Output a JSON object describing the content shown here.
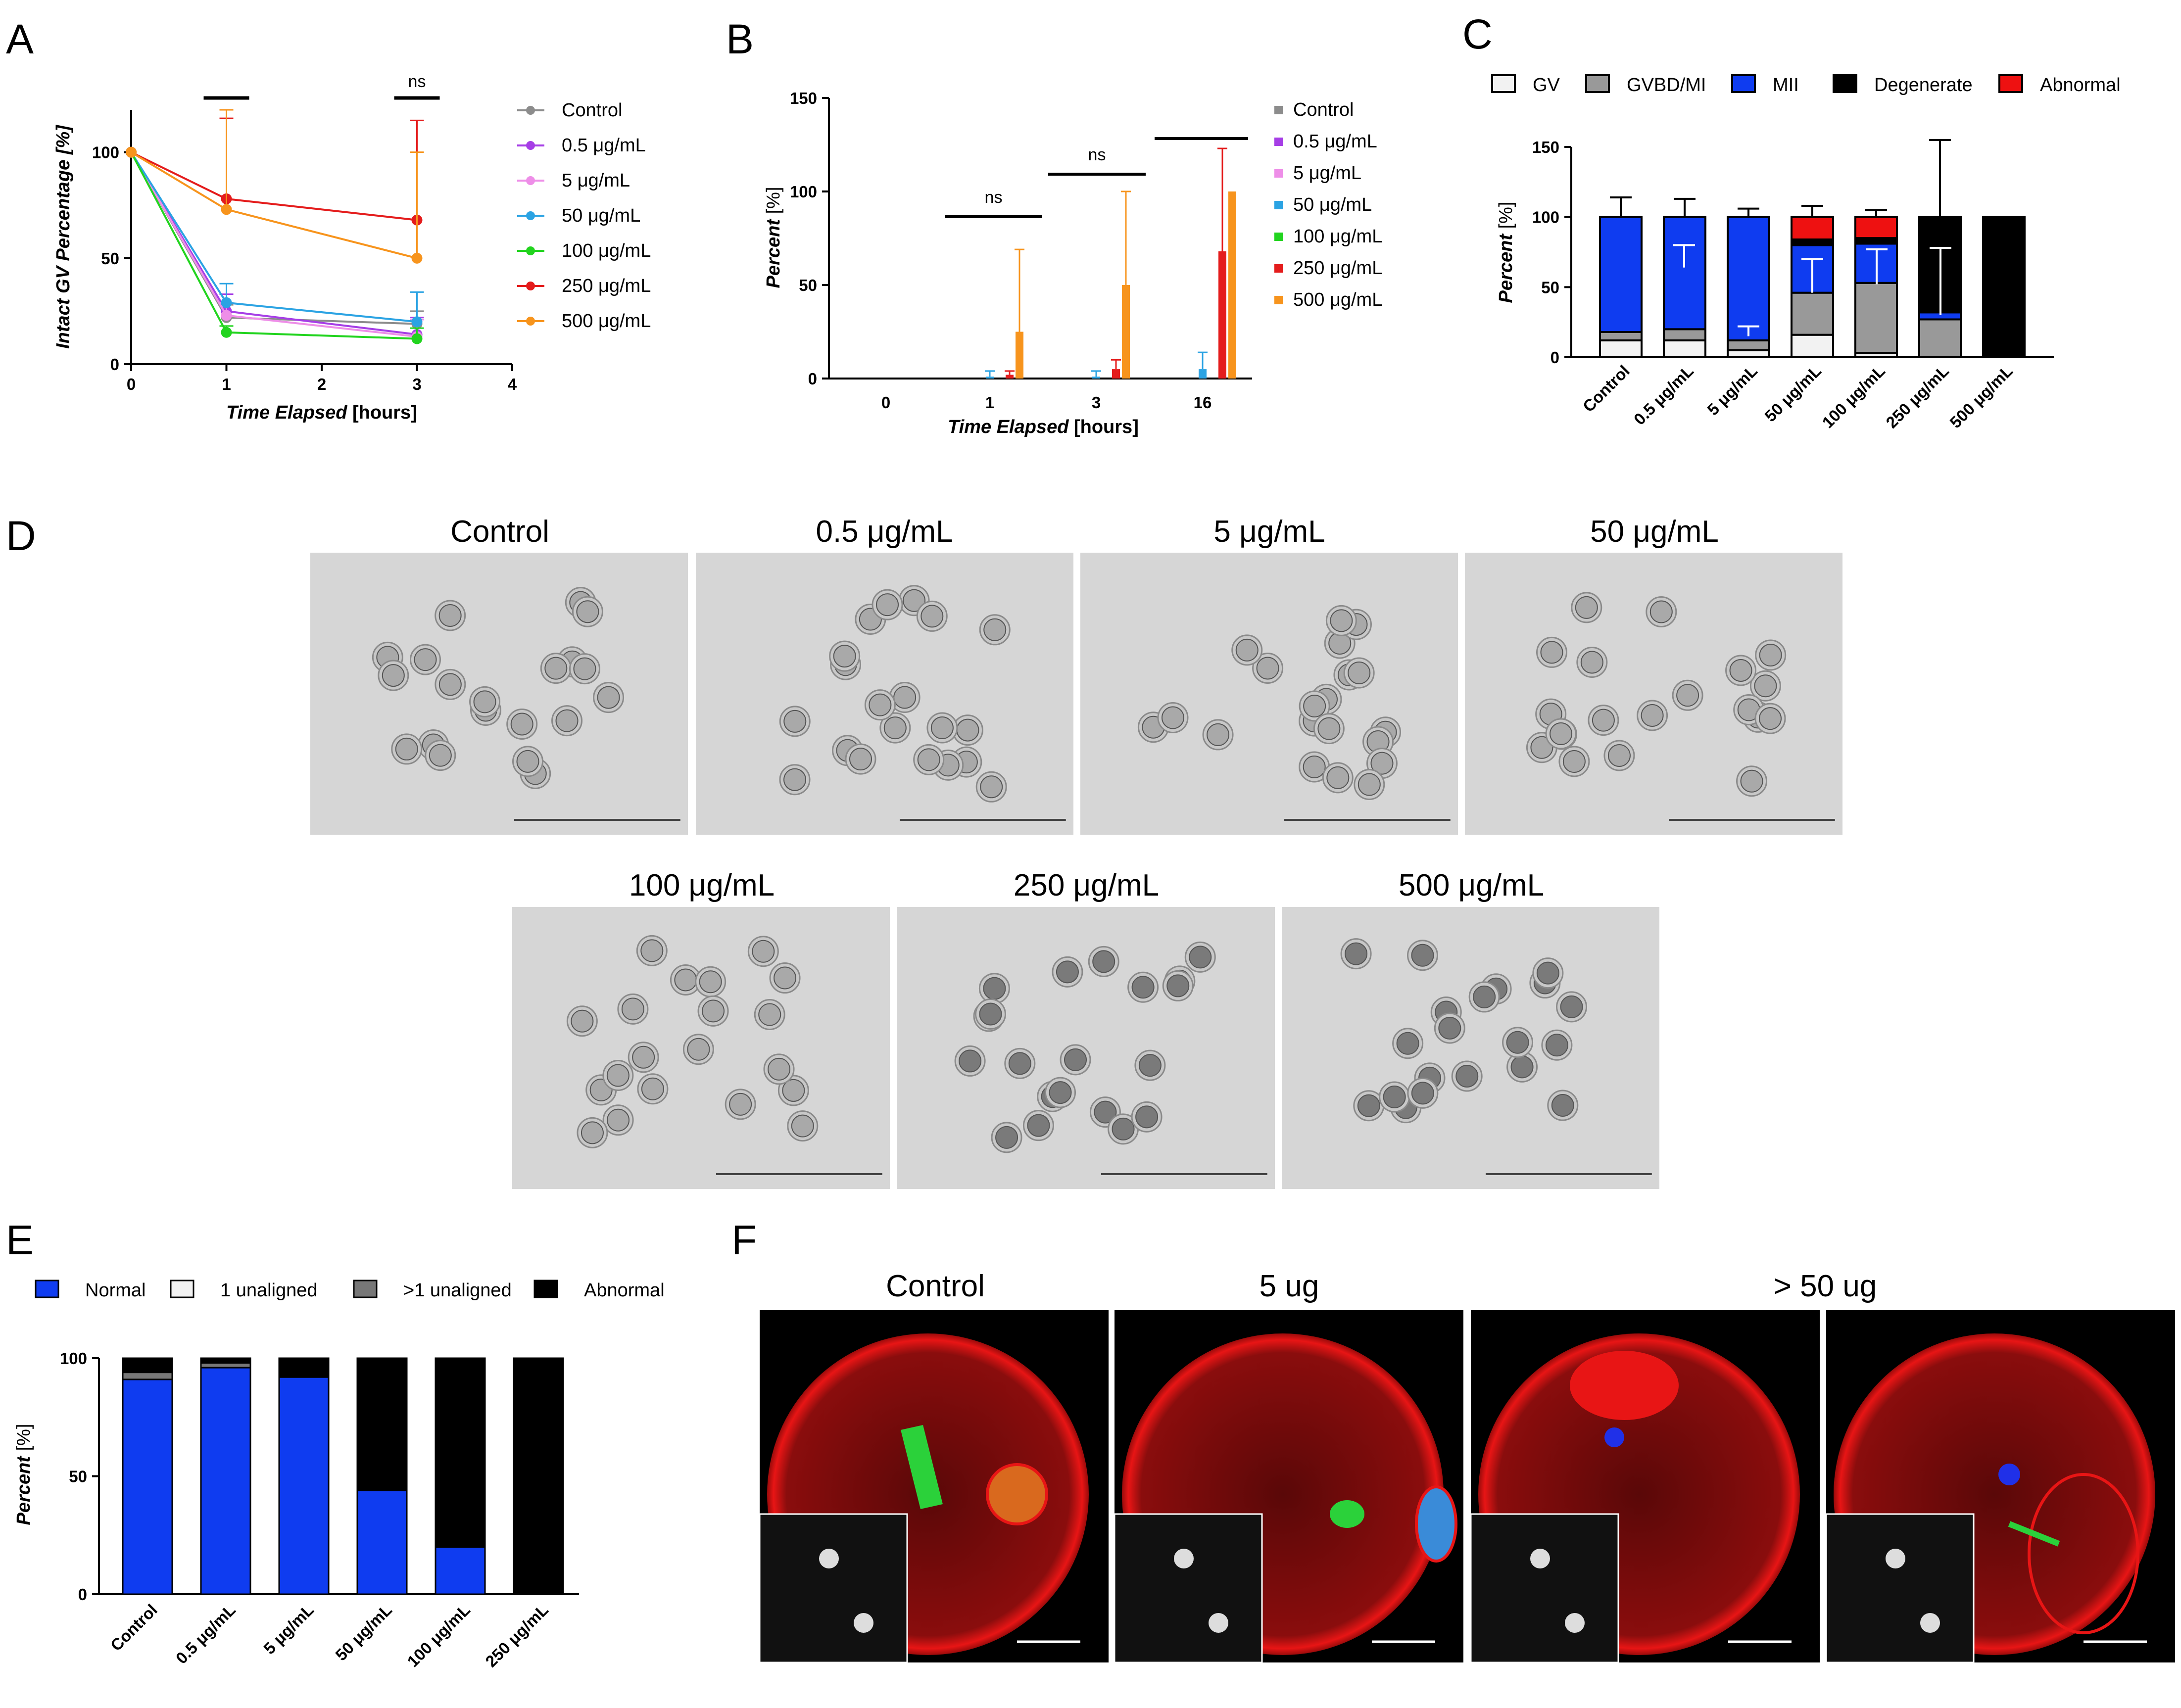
{
  "colors": {
    "gray": "#8c8c8c",
    "purple": "#a63ee6",
    "pink": "#ee8ee8",
    "blue": "#2ba3e3",
    "green": "#22d41f",
    "red": "#e41c1c",
    "orange": "#f7941d",
    "stack_gv": "#f2f2f2",
    "stack_gvbd": "#999999",
    "stack_mii": "#0f3cf0",
    "stack_degen": "#000000",
    "stack_abn": "#ee1111",
    "dark_gray": "#777777"
  },
  "panels": {
    "a": "A",
    "b": "B",
    "c": "C",
    "d": "D",
    "e": "E",
    "f": "F"
  },
  "chart_data": [
    {
      "id": "A",
      "type": "line",
      "xlabel_italic": "Time Elapsed",
      "xlabel_unit": "[hours]",
      "ylabel": "Intact GV Percentage [%]",
      "x": [
        0,
        1,
        3
      ],
      "xlim": [
        0,
        4
      ],
      "ylim": [
        0,
        120
      ],
      "xticks": [
        "0",
        "1",
        "2",
        "3",
        "4"
      ],
      "yticks": [
        "0",
        "50",
        "100"
      ],
      "significance": [
        "",
        "ns"
      ],
      "series": [
        {
          "name": "Control",
          "color": "gray",
          "values": [
            100,
            22,
            19
          ],
          "err": [
            0,
            6,
            6
          ]
        },
        {
          "name": "0.5 μg/mL",
          "color": "purple",
          "values": [
            100,
            25,
            14
          ],
          "err": [
            0,
            8,
            8
          ]
        },
        {
          "name": "5 μg/mL",
          "color": "pink",
          "values": [
            100,
            23,
            13
          ],
          "err": [
            0,
            6,
            8
          ]
        },
        {
          "name": "50 μg/mL",
          "color": "blue",
          "values": [
            100,
            29,
            20
          ],
          "err": [
            0,
            9,
            14
          ]
        },
        {
          "name": "100 μg/mL",
          "color": "green",
          "values": [
            100,
            15,
            12
          ],
          "err": [
            0,
            3,
            5
          ]
        },
        {
          "name": "250 μg/mL",
          "color": "red",
          "values": [
            100,
            78,
            68
          ],
          "err": [
            0,
            38,
            47
          ]
        },
        {
          "name": "500 μg/mL",
          "color": "orange",
          "values": [
            100,
            73,
            50
          ],
          "err": [
            0,
            47,
            50
          ]
        }
      ]
    },
    {
      "id": "B",
      "type": "bar",
      "xlabel_italic": "Time Elapsed",
      "xlabel_unit": "[hours]",
      "ylabel": "Percent [%]",
      "categories": [
        "0",
        "1",
        "3",
        "16"
      ],
      "ylim": [
        0,
        150
      ],
      "yticks": [
        "0",
        "50",
        "100",
        "150"
      ],
      "significance": [
        "ns",
        "ns",
        ""
      ],
      "series": [
        {
          "name": "Control",
          "color": "gray",
          "values": [
            0,
            0,
            0,
            0
          ],
          "err": [
            0,
            0,
            0,
            0
          ]
        },
        {
          "name": "0.5 μg/mL",
          "color": "purple",
          "values": [
            0,
            0,
            0,
            0
          ],
          "err": [
            0,
            0,
            0,
            0
          ]
        },
        {
          "name": "5 μg/mL",
          "color": "pink",
          "values": [
            0,
            0,
            0,
            0
          ],
          "err": [
            0,
            0,
            0,
            0
          ]
        },
        {
          "name": "50 μg/mL",
          "color": "blue",
          "values": [
            0,
            1,
            1,
            5
          ],
          "err": [
            0,
            3,
            3,
            9
          ]
        },
        {
          "name": "100 μg/mL",
          "color": "green",
          "values": [
            0,
            0,
            0,
            0
          ],
          "err": [
            0,
            0,
            0,
            0
          ]
        },
        {
          "name": "250 μg/mL",
          "color": "red",
          "values": [
            0,
            2,
            5,
            68
          ],
          "err": [
            0,
            2,
            5,
            55
          ]
        },
        {
          "name": "500 μg/mL",
          "color": "orange",
          "values": [
            0,
            25,
            50,
            100
          ],
          "err": [
            0,
            44,
            50,
            0
          ]
        }
      ]
    },
    {
      "id": "C",
      "type": "bar",
      "stacked": true,
      "ylabel": "Percent [%]",
      "categories": [
        "Control",
        "0.5 μg/mL",
        "5 μg/mL",
        "50 μg/mL",
        "100 μg/mL",
        "250 μg/mL",
        "500 μg/mL"
      ],
      "ylim": [
        0,
        150
      ],
      "yticks": [
        "0",
        "50",
        "100",
        "150"
      ],
      "series": [
        {
          "name": "GV",
          "color": "stack_gv",
          "values": [
            12,
            12,
            5,
            16,
            3,
            0,
            0
          ]
        },
        {
          "name": "GVBD/MI",
          "color": "stack_gvbd",
          "values": [
            6,
            8,
            7,
            30,
            50,
            27,
            0
          ]
        },
        {
          "name": "MII",
          "color": "stack_mii",
          "values": [
            82,
            80,
            88,
            34,
            28,
            5,
            0
          ]
        },
        {
          "name": "Degenerate",
          "color": "stack_degen",
          "values": [
            0,
            0,
            0,
            4,
            4,
            68,
            100
          ]
        },
        {
          "name": "Abnormal",
          "color": "stack_abn",
          "values": [
            0,
            0,
            0,
            16,
            15,
            0,
            0
          ]
        }
      ],
      "total_err": [
        14,
        13,
        6,
        8,
        5,
        55,
        0
      ]
    },
    {
      "id": "E",
      "type": "bar",
      "stacked": true,
      "ylabel": "Percent [%]",
      "categories": [
        "Control",
        "0.5 μg/mL",
        "5 μg/mL",
        "50 μg/mL",
        "100 μg/mL",
        "250 μg/mL"
      ],
      "ylim": [
        0,
        100
      ],
      "yticks": [
        "0",
        "50",
        "100"
      ],
      "series": [
        {
          "name": "Normal",
          "color": "stack_mii",
          "values": [
            91,
            96,
            92,
            44,
            20,
            0
          ]
        },
        {
          "name": "1 unaligned",
          "color": "stack_gv",
          "values": [
            0,
            0,
            0,
            0,
            0,
            0
          ]
        },
        {
          "name": ">1 unaligned",
          "color": "dark_gray",
          "values": [
            3,
            2,
            0,
            0,
            0,
            0
          ]
        },
        {
          "name": "Abnormal",
          "color": "stack_degen",
          "values": [
            6,
            2,
            8,
            56,
            80,
            100
          ]
        }
      ]
    }
  ],
  "micrographs_d": {
    "top": [
      "Control",
      "0.5 μg/mL",
      "5 μg/mL",
      "50 μg/mL"
    ],
    "bottom": [
      "100 μg/mL",
      "250 μg/mL",
      "500 μg/mL"
    ]
  },
  "micrographs_f": {
    "labels": [
      "Control",
      "5 ug",
      "> 50 ug"
    ]
  }
}
